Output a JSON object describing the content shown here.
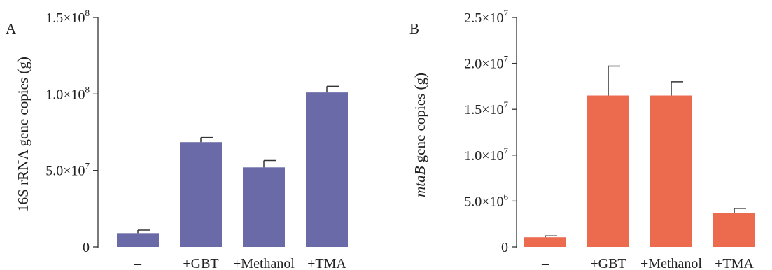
{
  "chart_data": [
    {
      "type": "bar",
      "panel_label": "A",
      "categories": [
        "–",
        "+GBT",
        "+Methanol",
        "+TMA"
      ],
      "values": [
        9000000,
        68500000,
        52000000,
        101000000
      ],
      "error": [
        2000000,
        3000000,
        4500000,
        4000000
      ],
      "ylabel": "16S rRNA gene copies (g)",
      "ylabel_italic": "",
      "ylabel_rest": "16S rRNA gene copies (g)",
      "ylim": [
        0,
        150000000
      ],
      "yticks": [
        0,
        50000000,
        100000000,
        150000000
      ],
      "ytick_labels": [
        {
          "mant": "0",
          "exp": ""
        },
        {
          "mant": "5.0×10",
          "exp": "7"
        },
        {
          "mant": "1.0×10",
          "exp": "8"
        },
        {
          "mant": "1.5×10",
          "exp": "8"
        }
      ],
      "color": "#6b6aa8",
      "grid": false
    },
    {
      "type": "bar",
      "panel_label": "B",
      "categories": [
        "–",
        "+GBT",
        "+Methanol",
        "+TMA"
      ],
      "values": [
        1050000,
        16500000,
        16500000,
        3700000
      ],
      "error": [
        150000,
        3200000,
        1500000,
        500000
      ],
      "ylabel": "mtaB gene copies (g)",
      "ylabel_italic": "mtaB",
      "ylabel_rest": " gene copies (g)",
      "ylim": [
        0,
        25000000
      ],
      "yticks": [
        0,
        5000000,
        10000000,
        15000000,
        20000000,
        25000000
      ],
      "ytick_labels": [
        {
          "mant": "0",
          "exp": ""
        },
        {
          "mant": "5.0×10",
          "exp": "6"
        },
        {
          "mant": "1.0×10",
          "exp": "7"
        },
        {
          "mant": "1.5×10",
          "exp": "7"
        },
        {
          "mant": "2.0×10",
          "exp": "7"
        },
        {
          "mant": "2.5×10",
          "exp": "7"
        }
      ],
      "color": "#ec6a4e",
      "grid": false
    }
  ]
}
